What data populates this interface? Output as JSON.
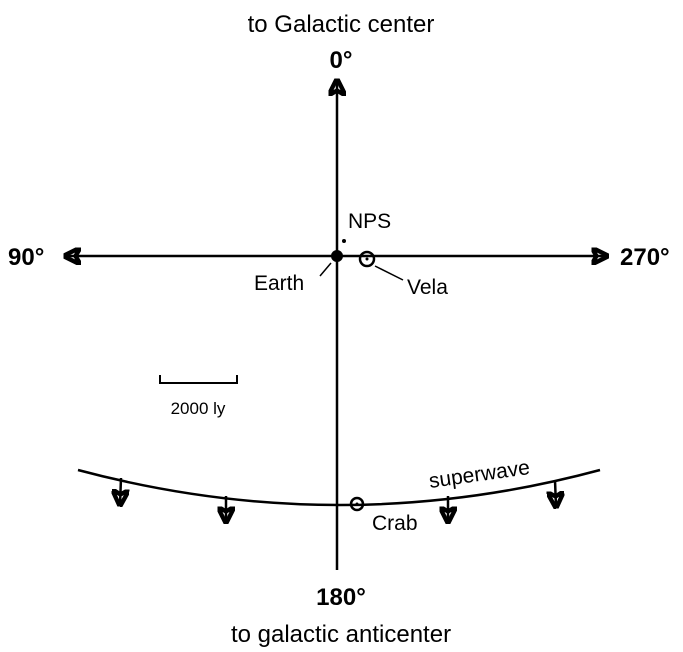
{
  "top_label": "to Galactic center",
  "bottom_label": "to galactic anticenter",
  "directions": {
    "north": "0°",
    "west": "90°",
    "east": "270°",
    "south": "180°"
  },
  "objects": {
    "nps": "NPS",
    "earth": "Earth",
    "vela": "Vela",
    "crab": "Crab"
  },
  "superwave": "superwave",
  "scale": "2000 ly"
}
